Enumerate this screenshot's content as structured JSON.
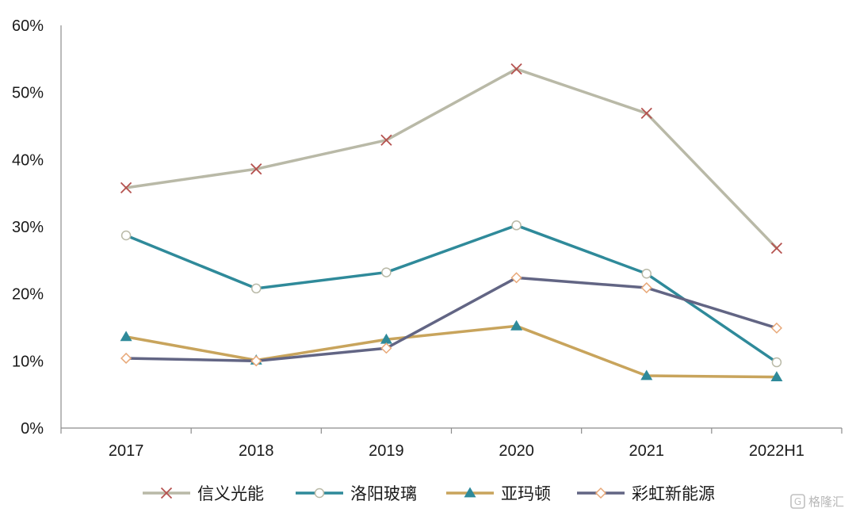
{
  "chart_data": {
    "type": "line",
    "title": "",
    "xlabel": "",
    "ylabel": "",
    "categories": [
      "2017",
      "2018",
      "2019",
      "2020",
      "2021",
      "2022H1"
    ],
    "ylim": [
      0,
      60
    ],
    "yticks": [
      0,
      10,
      20,
      30,
      40,
      50,
      60
    ],
    "ytick_labels": [
      "0%",
      "10%",
      "20%",
      "30%",
      "40%",
      "50%",
      "60%"
    ],
    "grid": false,
    "legend_position": "bottom",
    "series": [
      {
        "name": "信义光能",
        "values": [
          35.8,
          38.6,
          42.9,
          53.5,
          46.9,
          26.8
        ],
        "color": "#b9b9a7",
        "marker": "x",
        "marker_color": "#b5524f"
      },
      {
        "name": "洛阳玻璃",
        "values": [
          28.7,
          20.8,
          23.2,
          30.2,
          23.0,
          9.8
        ],
        "color": "#2f8a9a",
        "marker": "circle",
        "marker_color": "#b9b9a7"
      },
      {
        "name": "亚玛顿",
        "values": [
          13.6,
          10.1,
          13.2,
          15.2,
          7.8,
          7.6
        ],
        "color": "#c8a45c",
        "marker": "triangle",
        "marker_color": "#2f8a9a"
      },
      {
        "name": "彩虹新能源",
        "values": [
          10.4,
          10.0,
          11.9,
          22.4,
          20.9,
          14.9
        ],
        "color": "#626584",
        "marker": "diamond",
        "marker_color": "#e8a878"
      }
    ]
  },
  "watermark": {
    "text": "格隆汇"
  }
}
